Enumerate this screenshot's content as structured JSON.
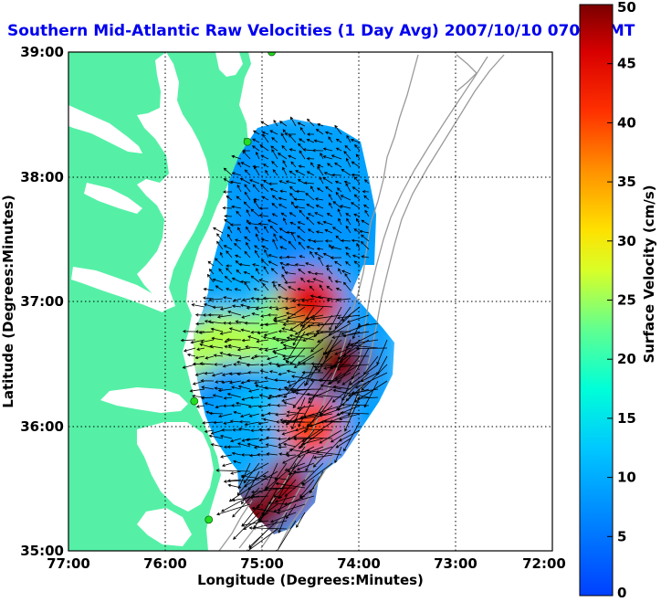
{
  "chart_data": {
    "type": "heatmap",
    "title": "Southern Mid-Atlantic Raw Velocities (1 Day Avg) 2007/10/10 0700 GMT",
    "xlabel": "Longitude (Degrees:Minutes)",
    "ylabel": "Latitude (Degrees:Minutes)",
    "x_ticks": [
      {
        "value": -77,
        "label": "77:00"
      },
      {
        "value": -76,
        "label": "76:00"
      },
      {
        "value": -75,
        "label": "75:00"
      },
      {
        "value": -74,
        "label": "74:00"
      },
      {
        "value": -73,
        "label": "73:00"
      },
      {
        "value": -72,
        "label": "72:00"
      }
    ],
    "y_ticks": [
      {
        "value": 35,
        "label": "35:00"
      },
      {
        "value": 36,
        "label": "36:00"
      },
      {
        "value": 37,
        "label": "37:00"
      },
      {
        "value": 38,
        "label": "38:00"
      },
      {
        "value": 39,
        "label": "39:00"
      }
    ],
    "xlim": [
      -77,
      -72
    ],
    "ylim": [
      35,
      39
    ],
    "grid": true,
    "colorbar": {
      "label": "Surface Velocity (cm/s)",
      "ticks": [
        {
          "value": 0,
          "label": "0"
        },
        {
          "value": 5,
          "label": "5"
        },
        {
          "value": 10,
          "label": "10"
        },
        {
          "value": 15,
          "label": "15"
        },
        {
          "value": 20,
          "label": "20"
        },
        {
          "value": 25,
          "label": "25"
        },
        {
          "value": 30,
          "label": "30"
        },
        {
          "value": 35,
          "label": "35"
        },
        {
          "value": 40,
          "label": "40"
        },
        {
          "value": 45,
          "label": "45"
        },
        {
          "value": 50,
          "label": "50"
        }
      ],
      "range": [
        0,
        50
      ],
      "colormap": "jet"
    },
    "colors": {
      "land": "#55f0a6",
      "water": "#ffffff",
      "contour": "#9a9a9a",
      "vectors": "#000000",
      "stations": "#22dd22",
      "title": "#0000ee"
    },
    "stations": [
      {
        "lon": -74.9,
        "lat": 39.0
      },
      {
        "lon": -75.15,
        "lat": 38.28
      },
      {
        "lon": -75.7,
        "lat": 36.2
      },
      {
        "lon": -75.55,
        "lat": 35.25
      }
    ],
    "speed_field": [
      {
        "lon": -75.0,
        "lat": 38.1,
        "speed": 8
      },
      {
        "lon": -74.6,
        "lat": 38.1,
        "speed": 9
      },
      {
        "lon": -74.3,
        "lat": 37.6,
        "speed": 8
      },
      {
        "lon": -74.9,
        "lat": 37.5,
        "speed": 7
      },
      {
        "lon": -75.2,
        "lat": 37.1,
        "speed": 10
      },
      {
        "lon": -74.7,
        "lat": 36.8,
        "speed": 24
      },
      {
        "lon": -75.4,
        "lat": 36.6,
        "speed": 26
      },
      {
        "lon": -75.3,
        "lat": 36.2,
        "speed": 8
      },
      {
        "lon": -75.0,
        "lat": 36.0,
        "speed": 12
      },
      {
        "lon": -74.5,
        "lat": 37.0,
        "speed": 45
      },
      {
        "lon": -74.2,
        "lat": 36.5,
        "speed": 50
      },
      {
        "lon": -74.5,
        "lat": 36.0,
        "speed": 40
      },
      {
        "lon": -74.8,
        "lat": 35.5,
        "speed": 48
      },
      {
        "lon": -75.1,
        "lat": 35.3,
        "speed": 50
      },
      {
        "lon": -75.3,
        "lat": 35.8,
        "speed": 10
      }
    ]
  }
}
